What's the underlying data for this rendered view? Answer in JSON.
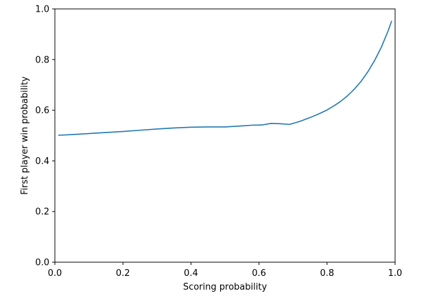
{
  "colors": {
    "line": "#1f77b4",
    "axes": "#000000",
    "background": "#ffffff"
  },
  "chart_data": {
    "type": "line",
    "title": "",
    "xlabel": "Scoring probability",
    "ylabel": "First player win probability",
    "xlim": [
      0,
      1
    ],
    "ylim": [
      0,
      1
    ],
    "grid": false,
    "legend": "none",
    "xticks": [
      "0.0",
      "0.2",
      "0.4",
      "0.6",
      "0.8",
      "1.0"
    ],
    "yticks": [
      "0.0",
      "0.2",
      "0.4",
      "0.6",
      "0.8",
      "1.0"
    ],
    "series": [
      {
        "x": [
          0.01,
          0.05,
          0.1,
          0.15,
          0.2,
          0.25,
          0.3,
          0.35,
          0.4,
          0.45,
          0.5,
          0.55,
          0.58,
          0.61,
          0.635,
          0.66,
          0.69,
          0.72,
          0.75,
          0.78,
          0.8,
          0.82,
          0.84,
          0.86,
          0.88,
          0.9,
          0.92,
          0.94,
          0.96,
          0.98,
          0.99
        ],
        "y": [
          0.501,
          0.504,
          0.508,
          0.512,
          0.516,
          0.521,
          0.526,
          0.53,
          0.533,
          0.534,
          0.534,
          0.538,
          0.541,
          0.542,
          0.548,
          0.547,
          0.544,
          0.556,
          0.571,
          0.588,
          0.601,
          0.617,
          0.635,
          0.657,
          0.683,
          0.714,
          0.752,
          0.797,
          0.85,
          0.915,
          0.953
        ]
      }
    ]
  }
}
